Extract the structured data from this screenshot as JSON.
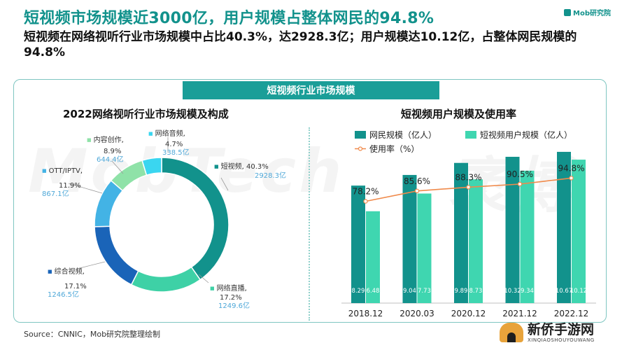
{
  "header": {
    "headline": "短视频市场规模近3000亿，用户规模占整体网民的94.8%",
    "subhead": "短视频在网络视听行业市场规模中占比40.3%，达2928.3亿；用户规模达10.12亿，占整体网民规模的94.8%",
    "brand": "Mob研究院"
  },
  "panel": {
    "tab_label": "短视频行业市场规模",
    "watermark_left": "MobTech",
    "watermark_right": "袤博"
  },
  "footer": {
    "source": "Source：CNNIC，Mob研究院整理绘制",
    "logo_cn": "新侨手游网",
    "logo_en": "XINQIAOSHOUYOUWANG"
  },
  "colors": {
    "teal_dark": "#12928c",
    "teal_light": "#3fd6b0",
    "line_orange": "#f08a4b",
    "donut": [
      "#12928c",
      "#3ed1a6",
      "#1a64b8",
      "#43b3e5",
      "#8fe2a8",
      "#3ad6f0"
    ]
  },
  "chart_data": [
    {
      "type": "pie",
      "title": "2022网络视听行业市场规模及构成",
      "slices": [
        {
          "name": "短视频",
          "percent_label": "40.3%",
          "value_label": "2928.3亿",
          "percent": 40.3,
          "value": 2928.3,
          "color": "#12928c"
        },
        {
          "name": "网络直播",
          "percent_label": "17.2%",
          "value_label": "1249.6亿",
          "percent": 17.2,
          "value": 1249.6,
          "color": "#3ed1a6"
        },
        {
          "name": "综合视频",
          "percent_label": "17.1%",
          "value_label": "1246.5亿",
          "percent": 17.1,
          "value": 1246.5,
          "color": "#1a64b8"
        },
        {
          "name": "OTT/IPTV",
          "percent_label": "11.9%",
          "value_label": "867.1亿",
          "percent": 11.9,
          "value": 867.1,
          "color": "#43b3e5"
        },
        {
          "name": "内容创作",
          "percent_label": "8.9%",
          "value_label": "644.4亿",
          "percent": 8.9,
          "value": 644.4,
          "color": "#8fe2a8"
        },
        {
          "name": "网络音频",
          "percent_label": "4.7%",
          "value_label": "338.5亿",
          "percent": 4.7,
          "value": 338.5,
          "color": "#3ad6f0"
        }
      ]
    },
    {
      "type": "bar",
      "title": "短视频用户规模及使用率",
      "categories": [
        "2018.12",
        "2020.03",
        "2020.12",
        "2021.12",
        "2022.12"
      ],
      "series": [
        {
          "name": "网民规模（亿人）",
          "values": [
            8.29,
            9.04,
            9.89,
            10.32,
            10.67
          ],
          "labels": [
            "8.29",
            "9.04",
            "9.89",
            "10.32",
            "10.67"
          ],
          "color": "#12928c"
        },
        {
          "name": "短视频用户规模（亿人）",
          "values": [
            6.48,
            7.73,
            8.73,
            9.34,
            10.12
          ],
          "labels": [
            "6.48",
            "7.73",
            "8.73",
            "9.34",
            "10.12"
          ],
          "color": "#3fd6b0"
        }
      ],
      "line": {
        "name": "使用率（%）",
        "values": [
          78.2,
          85.6,
          88.3,
          90.5,
          94.8
        ],
        "labels": [
          "78.2%",
          "85.6%",
          "88.3%",
          "90.5%",
          "94.8%"
        ],
        "color": "#f08a4b"
      }
    }
  ]
}
